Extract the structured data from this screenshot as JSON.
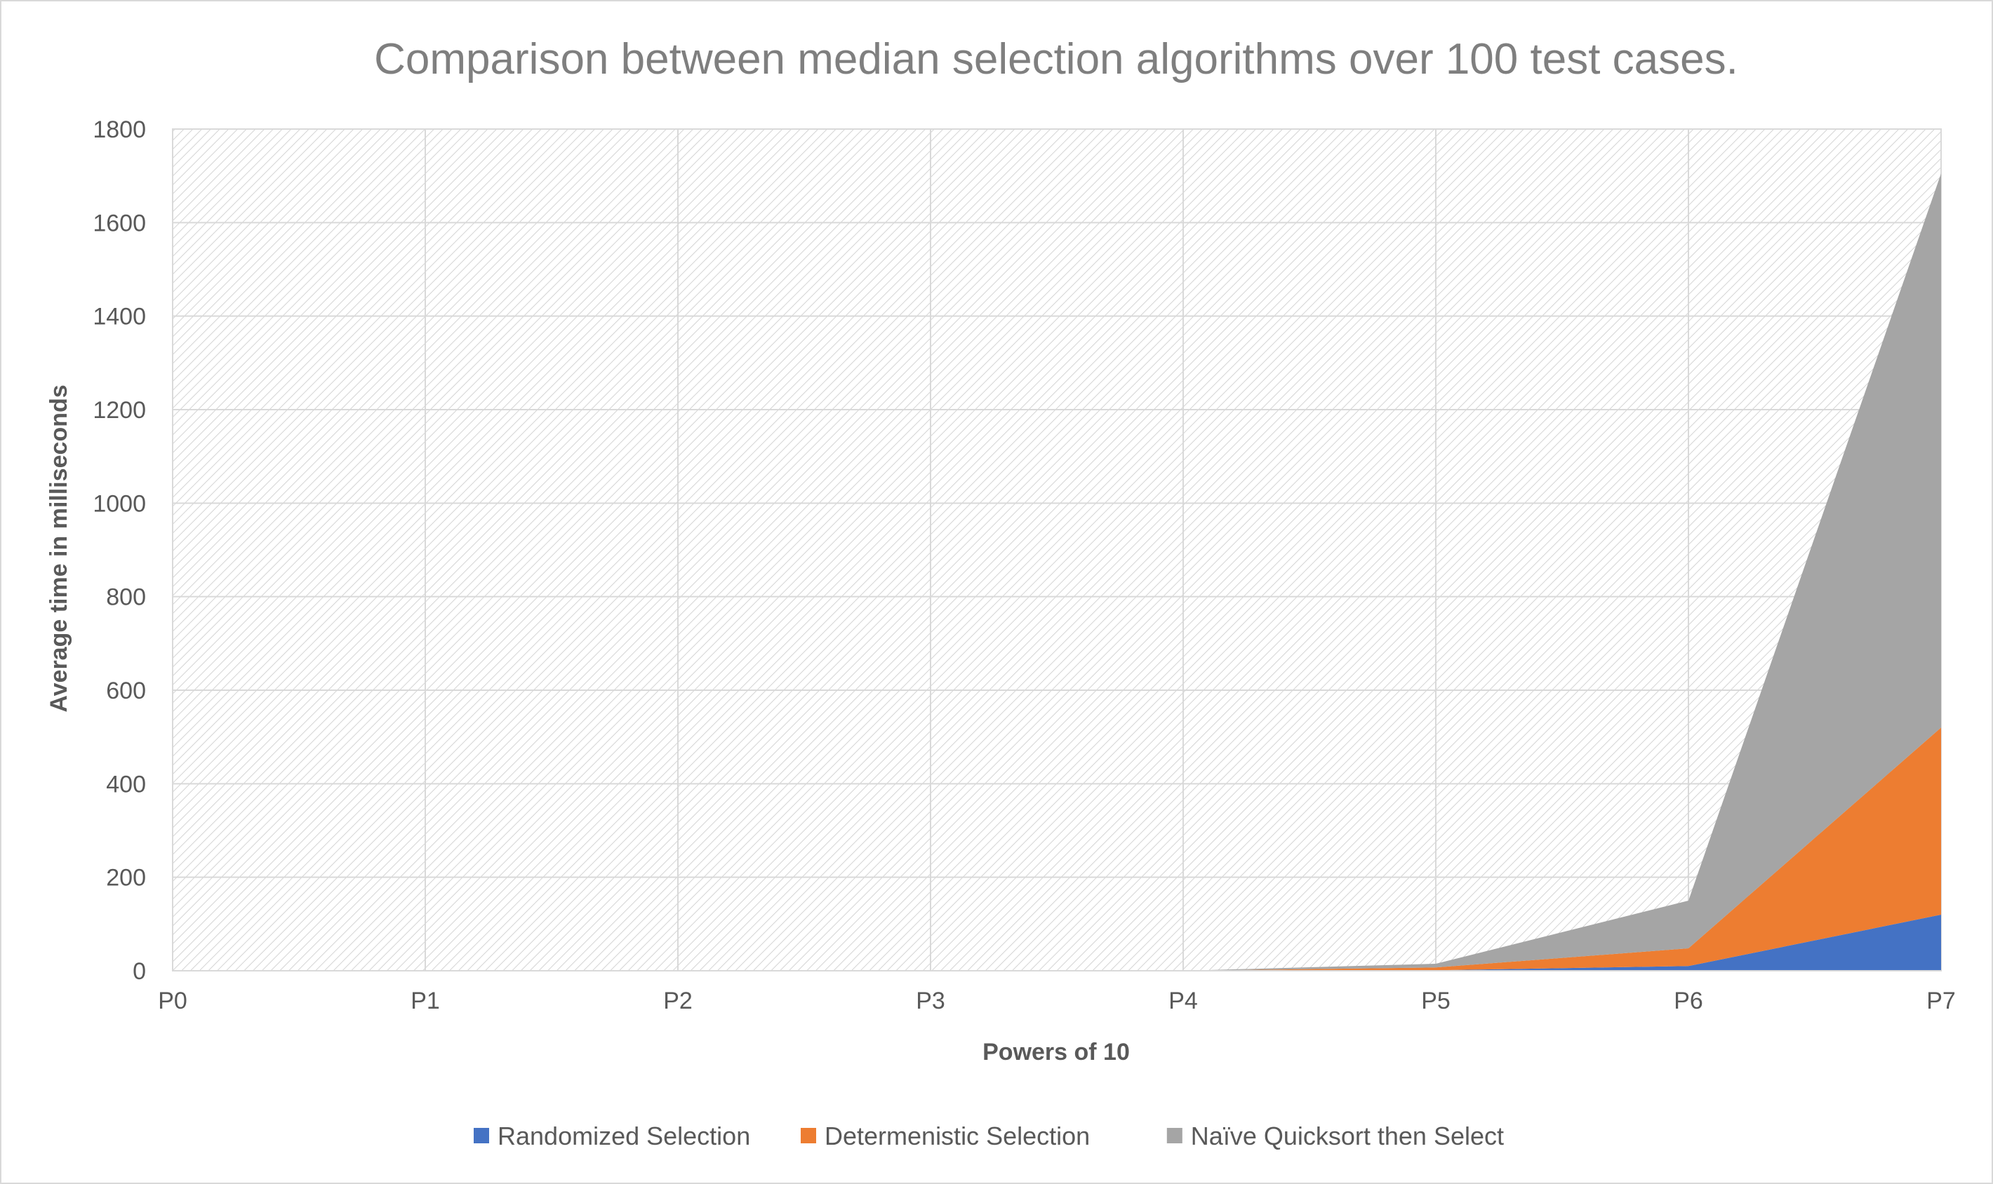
{
  "chart_data": {
    "type": "area",
    "stacked": true,
    "title": "Comparison between median selection algorithms over 100 test cases.",
    "xlabel": "Powers of 10",
    "ylabel": "Average time in milliseconds",
    "categories": [
      "P0",
      "P1",
      "P2",
      "P3",
      "P4",
      "P5",
      "P6",
      "P7"
    ],
    "ylim": [
      0,
      1800
    ],
    "yticks": [
      0,
      200,
      400,
      600,
      800,
      1000,
      1200,
      1400,
      1600,
      1800
    ],
    "grid": true,
    "plot_background": "diagonal-hatch",
    "legend_position": "bottom",
    "series": [
      {
        "name": "Randomized Selection",
        "color": "#4472C4",
        "values": [
          0,
          0,
          0,
          0,
          0,
          1,
          10,
          120
        ]
      },
      {
        "name": "Determenistic Selection",
        "color": "#ED7D31",
        "values": [
          0,
          0,
          0,
          0,
          0,
          6,
          38,
          400
        ]
      },
      {
        "name": "Naïve Quicksort then Select",
        "color": "#A5A5A5",
        "values": [
          0,
          0,
          0,
          0,
          0,
          8,
          102,
          1185
        ]
      }
    ]
  }
}
